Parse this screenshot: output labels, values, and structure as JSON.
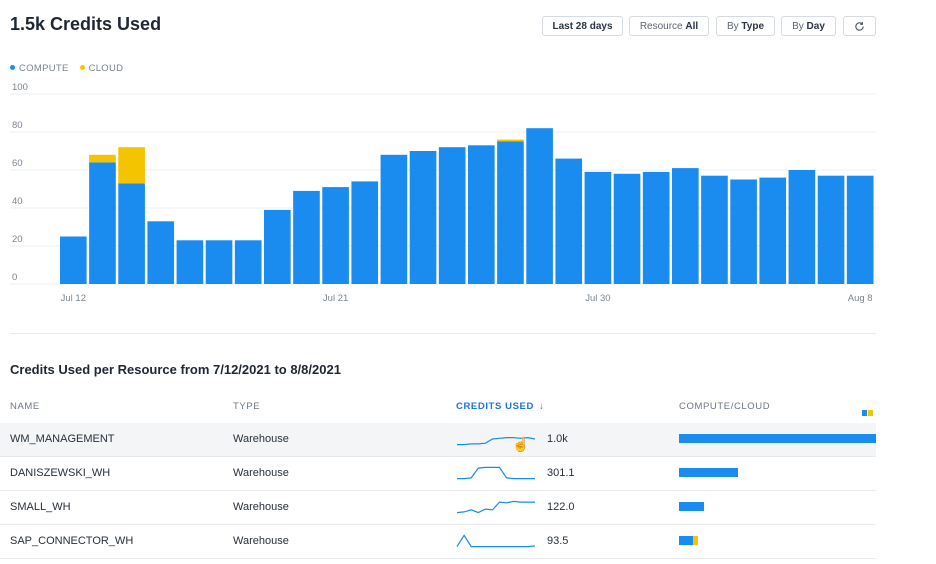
{
  "header": {
    "title": "1.5k Credits Used",
    "buttons": {
      "range": "Last 28 days",
      "resource_label": "Resource",
      "resource_value": "All",
      "by_label": "By",
      "type_value": "Type",
      "day_value": "Day",
      "refresh_icon": "refresh-icon"
    }
  },
  "legend": [
    {
      "name": "COMPUTE",
      "color": "#1a8cf0"
    },
    {
      "name": "CLOUD",
      "color": "#f5c400"
    }
  ],
  "chart_data": {
    "type": "bar",
    "stacked": true,
    "ylim": [
      0,
      100
    ],
    "yticks": [
      "0",
      "20",
      "40",
      "60",
      "80",
      "100"
    ],
    "xticks": [
      {
        "label": "Jul 12",
        "index": 0
      },
      {
        "label": "Jul 21",
        "index": 9
      },
      {
        "label": "Jul 30",
        "index": 18
      },
      {
        "label": "Aug 8",
        "index": 27
      }
    ],
    "grid": true,
    "legend_position": "top-left",
    "series": [
      {
        "name": "COMPUTE",
        "color": "#1a8cf0",
        "values": [
          25,
          64,
          53,
          33,
          23,
          23,
          23,
          39,
          49,
          51,
          54,
          68,
          70,
          72,
          73,
          75,
          82,
          66,
          59,
          58,
          59,
          61,
          57,
          55,
          56,
          60,
          57,
          57
        ]
      },
      {
        "name": "CLOUD",
        "color": "#f5c400",
        "values": [
          0,
          4,
          19,
          0,
          0,
          0,
          0,
          0,
          0,
          0,
          0,
          0,
          0,
          0,
          0,
          1,
          0,
          0,
          0,
          0,
          0,
          0,
          0,
          0,
          0,
          0,
          0,
          0
        ]
      }
    ]
  },
  "table": {
    "title": "Credits Used per Resource from 7/12/2021 to 8/8/2021",
    "columns": {
      "name": "NAME",
      "type": "TYPE",
      "credits": "CREDITS USED",
      "credits_arrow": "↓",
      "compute_cloud": "COMPUTE/CLOUD"
    },
    "rows": [
      {
        "name": "WM_MANAGEMENT",
        "type": "Warehouse",
        "credits": "1.0k",
        "share": 1.0,
        "cloud_fraction": 0.0,
        "spark": [
          0.1,
          0.1,
          0.15,
          0.15,
          0.2,
          0.5,
          0.55,
          0.6,
          0.6,
          0.55,
          0.6,
          0.5
        ]
      },
      {
        "name": "DANISZEWSKI_WH",
        "type": "Warehouse",
        "credits": "301.1",
        "share": 0.3,
        "cloud_fraction": 0.0,
        "spark": [
          0.1,
          0.1,
          0.15,
          0.85,
          0.9,
          0.9,
          0.9,
          0.15,
          0.1,
          0.1,
          0.1,
          0.1
        ]
      },
      {
        "name": "SMALL_WH",
        "type": "Warehouse",
        "credits": "122.0",
        "share": 0.125,
        "cloud_fraction": 0.0,
        "spark": [
          0.1,
          0.15,
          0.3,
          0.1,
          0.35,
          0.3,
          0.85,
          0.8,
          0.9,
          0.85,
          0.85,
          0.85
        ]
      },
      {
        "name": "SAP_CONNECTOR_WH",
        "type": "Warehouse",
        "credits": "93.5",
        "share": 0.098,
        "cloud_fraction": 0.25,
        "spark": [
          0.1,
          0.9,
          0.1,
          0.1,
          0.1,
          0.1,
          0.1,
          0.1,
          0.1,
          0.1,
          0.1,
          0.15
        ]
      }
    ],
    "cursor_icon": "hand-pointer-icon"
  }
}
